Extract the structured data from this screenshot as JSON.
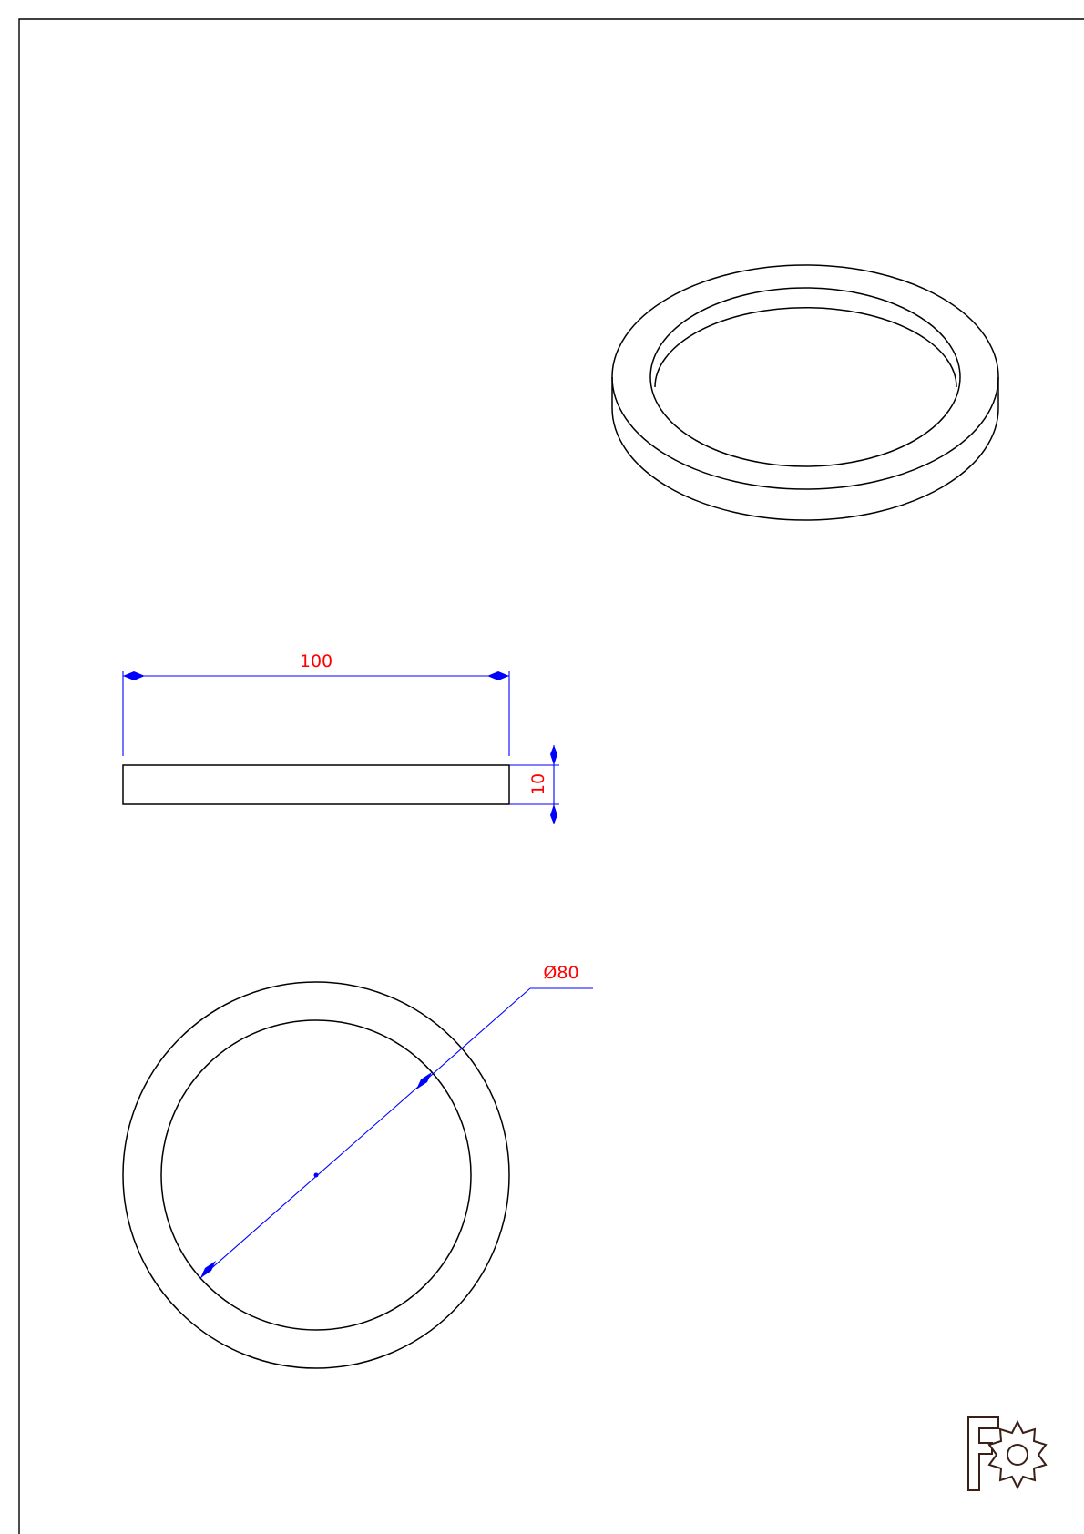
{
  "drawing": {
    "dimensions": {
      "width_label": "100",
      "height_label": "10",
      "diameter_label": "Ø80"
    },
    "colors": {
      "outline": "#000000",
      "dimension_line": "#0000ff",
      "dimension_text": "#ff0000",
      "logo": "#3a1f16"
    },
    "logo": {
      "icon": "freecad-gear-logo-icon"
    }
  }
}
